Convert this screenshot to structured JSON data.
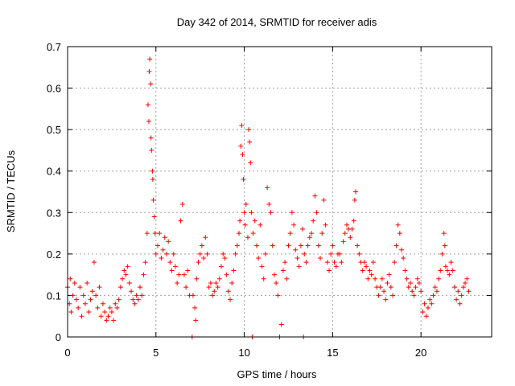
{
  "chart_data": {
    "type": "scatter",
    "title": "Day 342 of 2014, SRMTID for receiver adis",
    "xlabel": "GPS time / hours",
    "ylabel": "SRMTID / TECUs",
    "xlim": [
      0,
      24
    ],
    "ylim": [
      0,
      0.7
    ],
    "xticks": [
      0,
      5,
      10,
      15,
      20
    ],
    "yticks": [
      0,
      0.1,
      0.2,
      0.3,
      0.4,
      0.5,
      0.6,
      0.7
    ],
    "grid": true,
    "marker": "+",
    "color": "#ff0000",
    "series": [
      {
        "name": "SRMTID",
        "points": [
          [
            0.0,
            0.12
          ],
          [
            0.1,
            0.08
          ],
          [
            0.15,
            0.14
          ],
          [
            0.2,
            0.06
          ],
          [
            0.3,
            0.1
          ],
          [
            0.4,
            0.13
          ],
          [
            0.5,
            0.09
          ],
          [
            0.6,
            0.07
          ],
          [
            0.7,
            0.12
          ],
          [
            0.8,
            0.05
          ],
          [
            0.9,
            0.1
          ],
          [
            1.0,
            0.08
          ],
          [
            1.1,
            0.13
          ],
          [
            1.2,
            0.06
          ],
          [
            1.3,
            0.09
          ],
          [
            1.4,
            0.11
          ],
          [
            1.5,
            0.18
          ],
          [
            1.6,
            0.1
          ],
          [
            1.7,
            0.07
          ],
          [
            1.8,
            0.12
          ],
          [
            1.9,
            0.05
          ],
          [
            2.0,
            0.08
          ],
          [
            2.1,
            0.06
          ],
          [
            2.2,
            0.04
          ],
          [
            2.3,
            0.05
          ],
          [
            2.4,
            0.07
          ],
          [
            2.5,
            0.06
          ],
          [
            2.6,
            0.04
          ],
          [
            2.7,
            0.08
          ],
          [
            2.8,
            0.07
          ],
          [
            2.9,
            0.09
          ],
          [
            3.0,
            0.12
          ],
          [
            3.1,
            0.14
          ],
          [
            3.2,
            0.16
          ],
          [
            3.3,
            0.15
          ],
          [
            3.4,
            0.17
          ],
          [
            3.5,
            0.13
          ],
          [
            3.6,
            0.11
          ],
          [
            3.7,
            0.09
          ],
          [
            3.8,
            0.08
          ],
          [
            3.9,
            0.1
          ],
          [
            4.0,
            0.09
          ],
          [
            4.1,
            0.12
          ],
          [
            4.2,
            0.1
          ],
          [
            4.3,
            0.15
          ],
          [
            4.4,
            0.18
          ],
          [
            4.5,
            0.25
          ],
          [
            4.55,
            0.56
          ],
          [
            4.6,
            0.52
          ],
          [
            4.62,
            0.64
          ],
          [
            4.65,
            0.67
          ],
          [
            4.7,
            0.61
          ],
          [
            4.72,
            0.48
          ],
          [
            4.75,
            0.45
          ],
          [
            4.8,
            0.4
          ],
          [
            4.82,
            0.38
          ],
          [
            4.85,
            0.33
          ],
          [
            4.9,
            0.29
          ],
          [
            4.95,
            0.25
          ],
          [
            5.0,
            0.2
          ],
          [
            5.1,
            0.22
          ],
          [
            5.2,
            0.25
          ],
          [
            5.3,
            0.19
          ],
          [
            5.4,
            0.21
          ],
          [
            5.5,
            0.24
          ],
          [
            5.6,
            0.2
          ],
          [
            5.7,
            0.23
          ],
          [
            5.8,
            0.18
          ],
          [
            5.9,
            0.16
          ],
          [
            6.0,
            0.2
          ],
          [
            6.1,
            0.17
          ],
          [
            6.2,
            0.13
          ],
          [
            6.3,
            0.15
          ],
          [
            6.4,
            0.28
          ],
          [
            6.5,
            0.32
          ],
          [
            6.6,
            0.15
          ],
          [
            6.7,
            0.12
          ],
          [
            6.8,
            0.16
          ],
          [
            6.9,
            0.1
          ],
          [
            7.05,
            0.0
          ],
          [
            7.1,
            0.1
          ],
          [
            7.2,
            0.07
          ],
          [
            7.25,
            0.04
          ],
          [
            7.3,
            0.14
          ],
          [
            7.4,
            0.18
          ],
          [
            7.5,
            0.2
          ],
          [
            7.6,
            0.22
          ],
          [
            7.7,
            0.19
          ],
          [
            7.8,
            0.24
          ],
          [
            7.9,
            0.2
          ],
          [
            8.0,
            0.12
          ],
          [
            8.1,
            0.13
          ],
          [
            8.2,
            0.1
          ],
          [
            8.3,
            0.11
          ],
          [
            8.4,
            0.13
          ],
          [
            8.5,
            0.12
          ],
          [
            8.6,
            0.14
          ],
          [
            8.7,
            0.17
          ],
          [
            8.8,
            0.2
          ],
          [
            8.9,
            0.19
          ],
          [
            9.0,
            0.15
          ],
          [
            9.1,
            0.11
          ],
          [
            9.2,
            0.09
          ],
          [
            9.3,
            0.13
          ],
          [
            9.4,
            0.16
          ],
          [
            9.5,
            0.2
          ],
          [
            9.6,
            0.22
          ],
          [
            9.7,
            0.25
          ],
          [
            9.75,
            0.28
          ],
          [
            9.8,
            0.46
          ],
          [
            9.85,
            0.51
          ],
          [
            9.9,
            0.44
          ],
          [
            9.95,
            0.38
          ],
          [
            10.0,
            0.3
          ],
          [
            10.05,
            0.27
          ],
          [
            10.1,
            0.32
          ],
          [
            10.2,
            0.24
          ],
          [
            10.25,
            0.5
          ],
          [
            10.3,
            0.47
          ],
          [
            10.35,
            0.42
          ],
          [
            10.4,
            0.3
          ],
          [
            10.45,
            0.0
          ],
          [
            10.5,
            0.25
          ],
          [
            10.6,
            0.28
          ],
          [
            10.7,
            0.22
          ],
          [
            10.8,
            0.19
          ],
          [
            10.9,
            0.27
          ],
          [
            11.0,
            0.17
          ],
          [
            11.1,
            0.14
          ],
          [
            11.2,
            0.2
          ],
          [
            11.3,
            0.36
          ],
          [
            11.4,
            0.32
          ],
          [
            11.5,
            0.3
          ],
          [
            11.6,
            0.22
          ],
          [
            11.7,
            0.15
          ],
          [
            11.8,
            0.13
          ],
          [
            11.9,
            0.1
          ],
          [
            12.0,
            0.0
          ],
          [
            12.1,
            0.03
          ],
          [
            12.2,
            0.16
          ],
          [
            12.3,
            0.18
          ],
          [
            12.4,
            0.14
          ],
          [
            12.5,
            0.22
          ],
          [
            12.6,
            0.25
          ],
          [
            12.7,
            0.3
          ],
          [
            12.8,
            0.27
          ],
          [
            12.9,
            0.21
          ],
          [
            13.0,
            0.19
          ],
          [
            13.1,
            0.17
          ],
          [
            13.2,
            0.22
          ],
          [
            13.3,
            0.26
          ],
          [
            13.35,
            0.0
          ],
          [
            13.4,
            0.2
          ],
          [
            13.5,
            0.18
          ],
          [
            13.6,
            0.22
          ],
          [
            13.7,
            0.24
          ],
          [
            13.8,
            0.25
          ],
          [
            13.9,
            0.28
          ],
          [
            14.0,
            0.34
          ],
          [
            14.1,
            0.3
          ],
          [
            14.2,
            0.22
          ],
          [
            14.3,
            0.19
          ],
          [
            14.4,
            0.25
          ],
          [
            14.5,
            0.33
          ],
          [
            14.6,
            0.27
          ],
          [
            14.7,
            0.18
          ],
          [
            14.8,
            0.16
          ],
          [
            14.9,
            0.2
          ],
          [
            15.0,
            0.22
          ],
          [
            15.1,
            0.18
          ],
          [
            15.2,
            0.17
          ],
          [
            15.3,
            0.2
          ],
          [
            15.4,
            0.2
          ],
          [
            15.5,
            0.18
          ],
          [
            15.6,
            0.23
          ],
          [
            15.7,
            0.25
          ],
          [
            15.8,
            0.27
          ],
          [
            15.9,
            0.26
          ],
          [
            16.0,
            0.24
          ],
          [
            16.1,
            0.26
          ],
          [
            16.2,
            0.28
          ],
          [
            16.25,
            0.33
          ],
          [
            16.3,
            0.35
          ],
          [
            16.4,
            0.22
          ],
          [
            16.5,
            0.2
          ],
          [
            16.6,
            0.18
          ],
          [
            16.7,
            0.16
          ],
          [
            16.8,
            0.18
          ],
          [
            16.9,
            0.17
          ],
          [
            17.0,
            0.14
          ],
          [
            17.1,
            0.16
          ],
          [
            17.2,
            0.15
          ],
          [
            17.3,
            0.18
          ],
          [
            17.4,
            0.14
          ],
          [
            17.5,
            0.12
          ],
          [
            17.6,
            0.1
          ],
          [
            17.7,
            0.12
          ],
          [
            17.8,
            0.14
          ],
          [
            17.9,
            0.11
          ],
          [
            18.0,
            0.09
          ],
          [
            18.1,
            0.13
          ],
          [
            18.2,
            0.15
          ],
          [
            18.3,
            0.12
          ],
          [
            18.4,
            0.1
          ],
          [
            18.5,
            0.18
          ],
          [
            18.6,
            0.22
          ],
          [
            18.7,
            0.27
          ],
          [
            18.8,
            0.25
          ],
          [
            18.9,
            0.21
          ],
          [
            19.0,
            0.19
          ],
          [
            19.1,
            0.16
          ],
          [
            19.2,
            0.14
          ],
          [
            19.3,
            0.12
          ],
          [
            19.4,
            0.13
          ],
          [
            19.5,
            0.11
          ],
          [
            19.6,
            0.1
          ],
          [
            19.7,
            0.12
          ],
          [
            19.8,
            0.14
          ],
          [
            19.9,
            0.13
          ],
          [
            20.0,
            0.11
          ],
          [
            20.1,
            0.06
          ],
          [
            20.2,
            0.08
          ],
          [
            20.3,
            0.05
          ],
          [
            20.4,
            0.07
          ],
          [
            20.5,
            0.09
          ],
          [
            20.6,
            0.08
          ],
          [
            20.7,
            0.1
          ],
          [
            20.8,
            0.12
          ],
          [
            20.9,
            0.11
          ],
          [
            21.0,
            0.14
          ],
          [
            21.1,
            0.16
          ],
          [
            21.2,
            0.2
          ],
          [
            21.3,
            0.25
          ],
          [
            21.35,
            0.22
          ],
          [
            21.4,
            0.17
          ],
          [
            21.5,
            0.16
          ],
          [
            21.6,
            0.15
          ],
          [
            21.7,
            0.18
          ],
          [
            21.8,
            0.16
          ],
          [
            21.9,
            0.12
          ],
          [
            22.0,
            0.09
          ],
          [
            22.1,
            0.11
          ],
          [
            22.2,
            0.08
          ],
          [
            22.3,
            0.1
          ],
          [
            22.4,
            0.12
          ],
          [
            22.5,
            0.13
          ],
          [
            22.6,
            0.14
          ],
          [
            22.7,
            0.11
          ]
        ]
      }
    ]
  }
}
